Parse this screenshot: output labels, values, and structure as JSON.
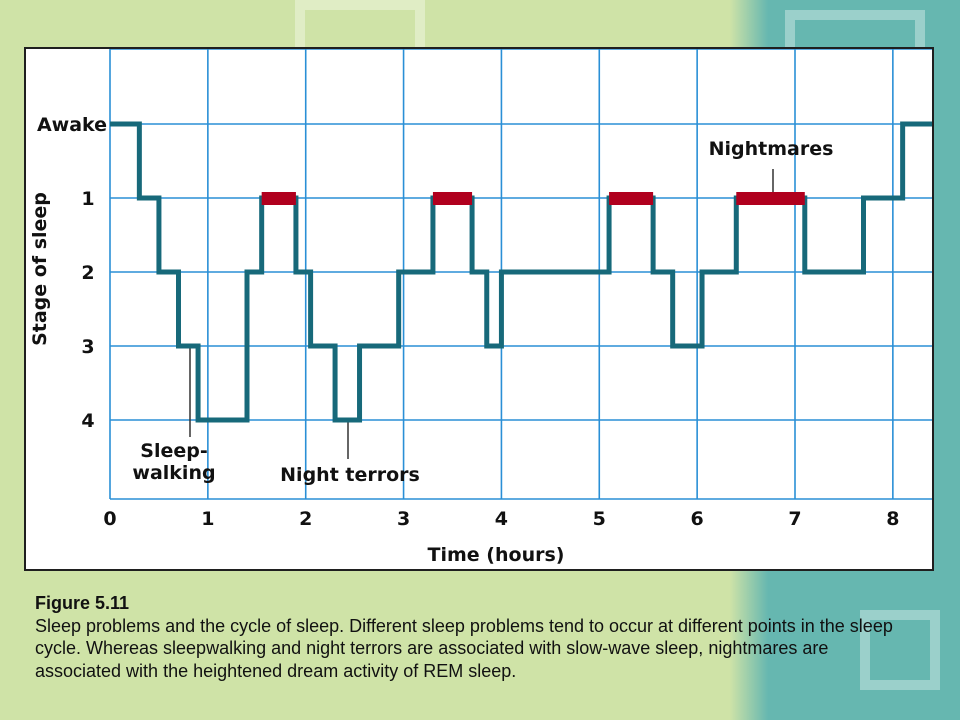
{
  "chart_data": {
    "type": "line",
    "title": "",
    "xlabel": "Time (hours)",
    "ylabel": "Stage of sleep",
    "xlim": [
      0,
      8.4
    ],
    "x_ticks": [
      "0",
      "1",
      "2",
      "3",
      "4",
      "5",
      "6",
      "7",
      "8"
    ],
    "y_categories": [
      "Awake",
      "1",
      "2",
      "3",
      "4"
    ],
    "grid": true,
    "series": [
      {
        "step_points": [
          [
            0,
            "Awake"
          ],
          [
            0.3,
            "Awake"
          ],
          [
            0.3,
            "1"
          ],
          [
            0.5,
            "1"
          ],
          [
            0.5,
            "2"
          ],
          [
            0.7,
            "2"
          ],
          [
            0.7,
            "3"
          ],
          [
            0.9,
            "3"
          ],
          [
            0.9,
            "4"
          ],
          [
            1.4,
            "4"
          ],
          [
            1.4,
            "3"
          ],
          [
            1.4,
            "2"
          ],
          [
            1.55,
            "2"
          ],
          [
            1.55,
            "1"
          ],
          [
            1.9,
            "1"
          ],
          [
            1.9,
            "2"
          ],
          [
            2.05,
            "2"
          ],
          [
            2.05,
            "3"
          ],
          [
            2.3,
            "3"
          ],
          [
            2.3,
            "4"
          ],
          [
            2.55,
            "4"
          ],
          [
            2.55,
            "3"
          ],
          [
            2.95,
            "3"
          ],
          [
            2.95,
            "2"
          ],
          [
            3.3,
            "2"
          ],
          [
            3.3,
            "1"
          ],
          [
            3.7,
            "1"
          ],
          [
            3.7,
            "2"
          ],
          [
            3.85,
            "2"
          ],
          [
            3.85,
            "3"
          ],
          [
            4.0,
            "3"
          ],
          [
            4.0,
            "2"
          ],
          [
            5.1,
            "2"
          ],
          [
            5.1,
            "1"
          ],
          [
            5.55,
            "1"
          ],
          [
            5.55,
            "2"
          ],
          [
            5.75,
            "2"
          ],
          [
            5.75,
            "3"
          ],
          [
            6.05,
            "3"
          ],
          [
            6.05,
            "2"
          ],
          [
            6.4,
            "2"
          ],
          [
            6.4,
            "1"
          ],
          [
            7.1,
            "1"
          ],
          [
            7.1,
            "2"
          ],
          [
            7.7,
            "2"
          ],
          [
            7.7,
            "1"
          ],
          [
            8.1,
            "1"
          ],
          [
            8.1,
            "Awake"
          ],
          [
            8.4,
            "Awake"
          ]
        ]
      }
    ],
    "rem_nightmare_segments": [
      [
        1.55,
        1.9
      ],
      [
        3.3,
        3.7
      ],
      [
        5.1,
        5.55
      ],
      [
        6.4,
        7.1
      ]
    ],
    "annotations": [
      {
        "text": [
          "Sleep-",
          "walking"
        ],
        "x": 0.8
      },
      {
        "text": [
          "Night terrors"
        ],
        "x": 2.45
      },
      {
        "text": [
          "Nightmares"
        ],
        "x": 6.75
      }
    ],
    "colors": {
      "line": "#17697a",
      "nightmare": "#b0001e",
      "grid": "#2a8fd6",
      "text": "#111111"
    }
  },
  "caption": {
    "figure_label": "Figure 5.11",
    "text": "Sleep problems and the cycle of sleep. Different sleep problems tend to occur at different points in the sleep cycle. Whereas sleepwalking and night terrors are associated with slow-wave sleep, nightmares are associated with the heightened dream activity of REM sleep."
  }
}
